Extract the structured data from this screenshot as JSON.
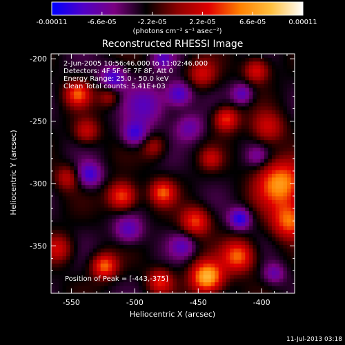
{
  "colorbar": {
    "tick_labels": [
      "-0.00011",
      "-6.6e-05",
      "-2.2e-05",
      "2.2e-05",
      "6.6e-05",
      "0.00011"
    ],
    "tick_values": [
      -0.00011,
      -6.6e-05,
      -2.2e-05,
      2.2e-05,
      6.6e-05,
      0.00011
    ],
    "range": [
      -0.00011,
      0.00011
    ],
    "units_label": "(photons cm⁻² s⁻¹ asec⁻²)",
    "stops": [
      "#0000ff",
      "#5000c8",
      "#7a0080",
      "#000000",
      "#8c0000",
      "#e00000",
      "#ff8000",
      "#ffc040",
      "#ffffff"
    ]
  },
  "chart_data": {
    "type": "heatmap",
    "title": "Reconstructed RHESSI Image",
    "xlabel": "Heliocentric X (arcsec)",
    "ylabel": "Heliocentric Y (arcsec)",
    "xlim": [
      -566,
      -374
    ],
    "ylim": [
      -388,
      -196
    ],
    "x_ticks": [
      -550,
      -500,
      -450,
      -400
    ],
    "y_ticks": [
      -200,
      -250,
      -300,
      -350
    ],
    "x_tick_labels": [
      "-550",
      "-500",
      "-450",
      "-400"
    ],
    "y_tick_labels": [
      "-200",
      "-250",
      "-300",
      "-350"
    ],
    "info_lines": [
      " 2-Jun-2005 10:56:46.000 to 11:02:46.000",
      "Detectors: 4F 5F 6F 7F 8F, Att 0",
      "Energy Range: 25.0 - 50.0 keV",
      "Clean    Total counts: 5.41E+03"
    ],
    "peak_label": "Position of Peak = [-443,-375]",
    "peak": [
      -443,
      -375
    ],
    "sources": [
      {
        "x": -443,
        "y": -375,
        "v": 0.00011,
        "s": 9
      },
      {
        "x": -385,
        "y": -300,
        "v": 9.5e-05,
        "s": 13
      },
      {
        "x": -378,
        "y": -330,
        "v": 8e-05,
        "s": 10
      },
      {
        "x": -510,
        "y": -310,
        "v": 8e-05,
        "s": 8
      },
      {
        "x": -478,
        "y": -307,
        "v": 7e-05,
        "s": 7
      },
      {
        "x": -418,
        "y": -358,
        "v": 8e-05,
        "s": 9
      },
      {
        "x": -428,
        "y": -248,
        "v": 7e-05,
        "s": 7
      },
      {
        "x": -395,
        "y": -255,
        "v": 5e-05,
        "s": 9
      },
      {
        "x": -545,
        "y": -228,
        "v": 7e-05,
        "s": 7
      },
      {
        "x": -538,
        "y": -258,
        "v": 5e-05,
        "s": 7
      },
      {
        "x": -524,
        "y": -366,
        "v": 8e-05,
        "s": 7
      },
      {
        "x": -452,
        "y": -330,
        "v": 7e-05,
        "s": 8
      },
      {
        "x": -447,
        "y": -212,
        "v": 5e-05,
        "s": 8
      },
      {
        "x": -404,
        "y": -209,
        "v": 6e-05,
        "s": 7
      },
      {
        "x": -480,
        "y": -378,
        "v": 6e-05,
        "s": 7
      },
      {
        "x": -553,
        "y": -295,
        "v": 4.5e-05,
        "s": 7
      },
      {
        "x": -560,
        "y": -352,
        "v": 5e-05,
        "s": 8
      },
      {
        "x": -485,
        "y": -270,
        "v": 4e-05,
        "s": 7
      },
      {
        "x": -440,
        "y": -280,
        "v": 4e-05,
        "s": 6
      },
      {
        "x": -520,
        "y": -230,
        "v": 4e-05,
        "s": 6
      },
      {
        "x": -490,
        "y": -237,
        "v": -4.5e-05,
        "s": 12
      },
      {
        "x": -517,
        "y": -215,
        "v": -6e-05,
        "s": 7
      },
      {
        "x": -500,
        "y": -260,
        "v": -6e-05,
        "s": 7
      },
      {
        "x": -465,
        "y": -228,
        "v": -6e-05,
        "s": 7
      },
      {
        "x": -536,
        "y": -293,
        "v": -6e-05,
        "s": 7
      },
      {
        "x": -505,
        "y": -337,
        "v": -5e-05,
        "s": 8
      },
      {
        "x": -417,
        "y": -328,
        "v": -7e-05,
        "s": 6
      },
      {
        "x": -415,
        "y": -228,
        "v": -5e-05,
        "s": 6
      },
      {
        "x": -457,
        "y": -255,
        "v": -4e-05,
        "s": 8
      },
      {
        "x": -462,
        "y": -350,
        "v": -4e-05,
        "s": 7
      },
      {
        "x": -390,
        "y": -372,
        "v": -4e-05,
        "s": 6
      },
      {
        "x": -478,
        "y": -200,
        "v": -4e-05,
        "s": 6
      },
      {
        "x": -403,
        "y": -278,
        "v": -3e-05,
        "s": 6
      }
    ]
  },
  "timestamp": "11-Jul-2013 03:18"
}
